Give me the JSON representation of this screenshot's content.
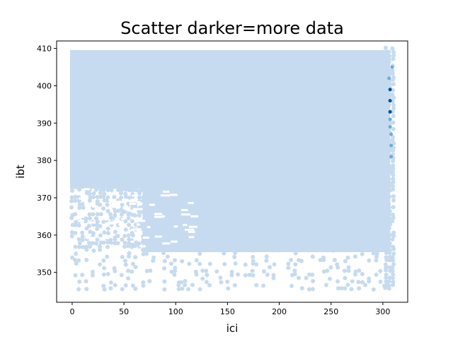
{
  "chart_data": {
    "type": "scatter",
    "title": "Scatter darker=more data",
    "xlabel": "ici",
    "ylabel": "ibt",
    "xlim": [
      -15,
      324
    ],
    "ylim": [
      342,
      412
    ],
    "xticks": [
      0,
      50,
      100,
      150,
      200,
      250,
      300
    ],
    "yticks": [
      350,
      360,
      370,
      380,
      390,
      400,
      410
    ],
    "grid": false,
    "colors": {
      "light": "#c6dbef",
      "medium": "#6baed6",
      "dark": "#08519c"
    },
    "description": "Dense hexbin-style scatter; nearly uniform light blue coverage for ici 0-305 and ibt ~356-409, sparser points down to ~345; darker concentration near ici ~305-310 at ibt ~383-400.",
    "regions": [
      {
        "x": [
          0,
          305
        ],
        "y": [
          373,
          409
        ],
        "density": "high"
      },
      {
        "x": [
          70,
          305
        ],
        "y": [
          356,
          373
        ],
        "density": "high"
      },
      {
        "x": [
          0,
          70
        ],
        "y": [
          356,
          373
        ],
        "density": "medium"
      },
      {
        "x": [
          0,
          305
        ],
        "y": [
          345,
          356
        ],
        "density": "low"
      },
      {
        "x": [
          303,
          312
        ],
        "y": [
          345,
          410
        ],
        "density": "column"
      }
    ],
    "dark_points": [
      {
        "x": 307,
        "y": 399
      },
      {
        "x": 307,
        "y": 396
      },
      {
        "x": 307,
        "y": 393
      },
      {
        "x": 307,
        "y": 391
      },
      {
        "x": 308,
        "y": 387
      },
      {
        "x": 308,
        "y": 384
      },
      {
        "x": 306,
        "y": 402
      },
      {
        "x": 309,
        "y": 405
      },
      {
        "x": 307,
        "y": 389
      },
      {
        "x": 308,
        "y": 381
      }
    ]
  }
}
